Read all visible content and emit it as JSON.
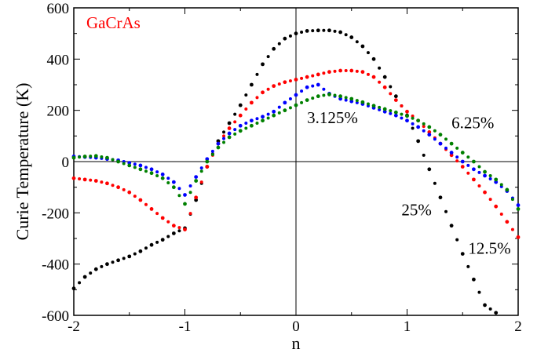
{
  "chart_data": {
    "type": "scatter",
    "title": "GaCrAs",
    "title_color": "#ff0000",
    "xlabel": "n",
    "ylabel": "Curie Temperature (K)",
    "xlim": [
      -2,
      2
    ],
    "ylim": [
      -600,
      600
    ],
    "xticks": [
      -2,
      -1,
      0,
      1,
      2
    ],
    "yticks": [
      -600,
      -400,
      -200,
      0,
      200,
      400,
      600
    ],
    "xtick_labels": [
      "-2",
      "-1",
      "0",
      "1",
      "2"
    ],
    "ytick_labels": [
      "-600",
      "-400",
      "-200",
      "0",
      "200",
      "400",
      "600"
    ],
    "grid": false,
    "zero_lines": true,
    "series": [
      {
        "name": "25%",
        "color": "#000000",
        "x": [
          -2.0,
          -1.9,
          -1.8,
          -1.7,
          -1.6,
          -1.5,
          -1.4,
          -1.3,
          -1.2,
          -1.1,
          -1.0,
          -0.9,
          -0.8,
          -0.7,
          -0.6,
          -0.5,
          -0.4,
          -0.3,
          -0.2,
          -0.1,
          0.0,
          0.1,
          0.2,
          0.3,
          0.4,
          0.5,
          0.6,
          0.7,
          0.8,
          0.9,
          1.0,
          1.1,
          1.2,
          1.3,
          1.4,
          1.5,
          1.6,
          1.7,
          1.8
        ],
        "y": [
          -495,
          -450,
          -420,
          -400,
          -385,
          -370,
          -350,
          -325,
          -305,
          -280,
          -260,
          -150,
          -20,
          80,
          150,
          220,
          300,
          380,
          440,
          480,
          500,
          510,
          512,
          512,
          505,
          485,
          450,
          400,
          330,
          255,
          180,
          80,
          -30,
          -140,
          -250,
          -360,
          -460,
          -560,
          -590
        ]
      },
      {
        "name": "12.5%",
        "color": "#ff0000",
        "x": [
          -2.0,
          -1.9,
          -1.8,
          -1.7,
          -1.6,
          -1.5,
          -1.4,
          -1.3,
          -1.2,
          -1.1,
          -1.0,
          -0.9,
          -0.8,
          -0.7,
          -0.6,
          -0.5,
          -0.4,
          -0.3,
          -0.2,
          -0.1,
          0.0,
          0.1,
          0.2,
          0.3,
          0.4,
          0.5,
          0.6,
          0.7,
          0.8,
          0.9,
          1.0,
          1.1,
          1.2,
          1.3,
          1.4,
          1.5,
          1.6,
          1.7,
          1.8,
          1.9,
          2.0
        ],
        "y": [
          -65,
          -70,
          -75,
          -85,
          -100,
          -120,
          -150,
          -185,
          -220,
          -250,
          -265,
          -140,
          -20,
          70,
          130,
          180,
          230,
          270,
          295,
          310,
          320,
          330,
          340,
          350,
          355,
          355,
          350,
          330,
          290,
          240,
          195,
          160,
          115,
          70,
          25,
          -20,
          -70,
          -120,
          -175,
          -235,
          -295
        ]
      },
      {
        "name": "6.25%",
        "color": "#0000ff",
        "x": [
          -2.0,
          -1.9,
          -1.8,
          -1.7,
          -1.6,
          -1.5,
          -1.4,
          -1.3,
          -1.2,
          -1.1,
          -1.0,
          -0.9,
          -0.8,
          -0.7,
          -0.6,
          -0.5,
          -0.4,
          -0.3,
          -0.2,
          -0.1,
          0.0,
          0.1,
          0.2,
          0.3,
          0.4,
          0.5,
          0.6,
          0.7,
          0.8,
          0.9,
          1.0,
          1.1,
          1.2,
          1.3,
          1.4,
          1.5,
          1.6,
          1.7,
          1.8,
          1.9,
          2.0
        ],
        "y": [
          20,
          18,
          15,
          10,
          5,
          -5,
          -15,
          -30,
          -50,
          -80,
          -130,
          -60,
          10,
          70,
          110,
          140,
          160,
          175,
          195,
          230,
          260,
          290,
          300,
          265,
          245,
          235,
          225,
          210,
          195,
          180,
          160,
          135,
          105,
          70,
          35,
          0,
          -30,
          -55,
          -80,
          -115,
          -170
        ]
      },
      {
        "name": "3.125%",
        "color": "#008000",
        "x": [
          -2.0,
          -1.9,
          -1.8,
          -1.7,
          -1.6,
          -1.5,
          -1.4,
          -1.3,
          -1.2,
          -1.1,
          -1.0,
          -0.9,
          -0.8,
          -0.7,
          -0.6,
          -0.5,
          -0.4,
          -0.3,
          -0.2,
          -0.1,
          0.0,
          0.1,
          0.2,
          0.3,
          0.4,
          0.5,
          0.6,
          0.7,
          0.8,
          0.9,
          1.0,
          1.1,
          1.2,
          1.3,
          1.4,
          1.5,
          1.6,
          1.7,
          1.8,
          1.9,
          2.0
        ],
        "y": [
          15,
          20,
          22,
          15,
          0,
          -15,
          -30,
          -45,
          -65,
          -100,
          -165,
          -75,
          0,
          55,
          95,
          120,
          140,
          160,
          180,
          200,
          220,
          240,
          255,
          262,
          255,
          245,
          232,
          218,
          205,
          192,
          178,
          160,
          135,
          105,
          70,
          35,
          0,
          -40,
          -70,
          -110,
          -185
        ]
      }
    ],
    "annotations": [
      {
        "text": "3.125%",
        "x": 0.1,
        "y": 150
      },
      {
        "text": "6.25%",
        "x": 1.4,
        "y": 130
      },
      {
        "text": "25%",
        "x": 0.95,
        "y": -210
      },
      {
        "text": "12.5%",
        "x": 1.55,
        "y": -360
      }
    ]
  }
}
